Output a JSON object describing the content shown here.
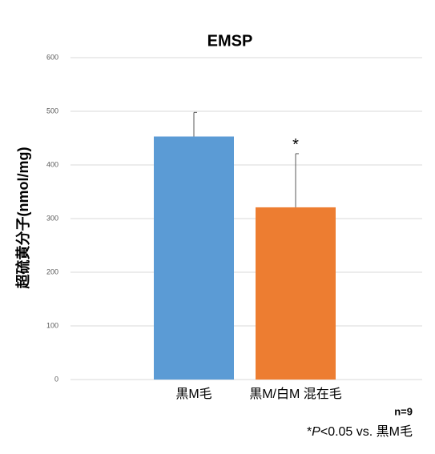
{
  "chart_data": {
    "type": "bar",
    "title": "EMSP",
    "y_label": "超硫黄分子(nmol/mg)",
    "categories": [
      "黒M毛",
      "黒M/白M 混在毛"
    ],
    "values": [
      453,
      321
    ],
    "errors": [
      45,
      100
    ],
    "colors": [
      "#5b9bd5",
      "#ed7d31"
    ],
    "ylim": [
      0,
      600
    ],
    "yticks": [
      0,
      100,
      200,
      300,
      400,
      500,
      600
    ],
    "grid": true,
    "annotations": [
      "*",
      "n=9"
    ],
    "footnote": [
      "*",
      "P",
      "<0.05 vs. 黒M毛"
    ]
  }
}
